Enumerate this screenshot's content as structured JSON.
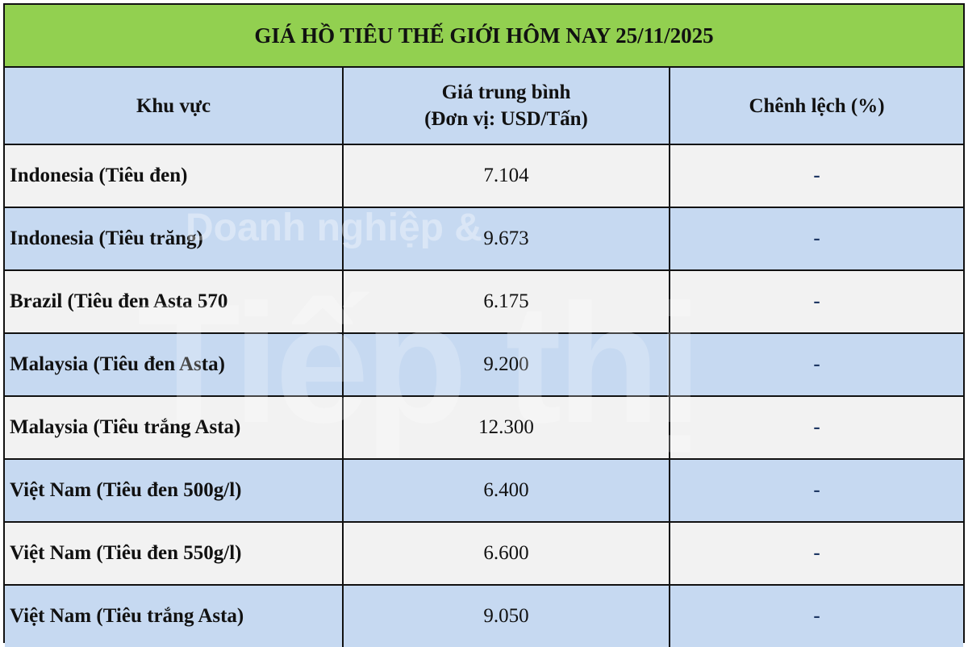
{
  "title": "GIÁ HỒ TIÊU THẾ GIỚI HÔM NAY 25/11/2025",
  "headers": {
    "region": "Khu vực",
    "price_line1": "Giá trung bình",
    "price_line2": "(Đơn vị: USD/Tấn)",
    "change": "Chênh lệch (%)"
  },
  "rows": [
    {
      "region": "Indonesia (Tiêu đen)",
      "price": "7.104",
      "change": "-"
    },
    {
      "region": "Indonesia (Tiêu trăng)",
      "price": "9.673",
      "change": "-"
    },
    {
      "region": "Brazil (Tiêu đen Asta 570",
      "price": "6.175",
      "change": "-"
    },
    {
      "region": "Malaysia (Tiêu đen Asta)",
      "price": "9.200",
      "change": "-"
    },
    {
      "region": "Malaysia (Tiêu trắng Asta)",
      "price": "12.300",
      "change": "-"
    },
    {
      "region": "Việt Nam (Tiêu đen 500g/l)",
      "price": "6.400",
      "change": "-"
    },
    {
      "region": "Việt Nam (Tiêu đen 550g/l)",
      "price": "6.600",
      "change": "-"
    },
    {
      "region": "Việt Nam (Tiêu trắng Asta)",
      "price": "9.050",
      "change": "-"
    }
  ],
  "watermark": {
    "line1": "Doanh nghiệp &",
    "line2": "Tiếp thị"
  },
  "colors": {
    "title_bg": "#92d050",
    "header_bg": "#c6d9f1",
    "row_light": "#f2f2f2",
    "row_blue": "#c6d9f1"
  }
}
